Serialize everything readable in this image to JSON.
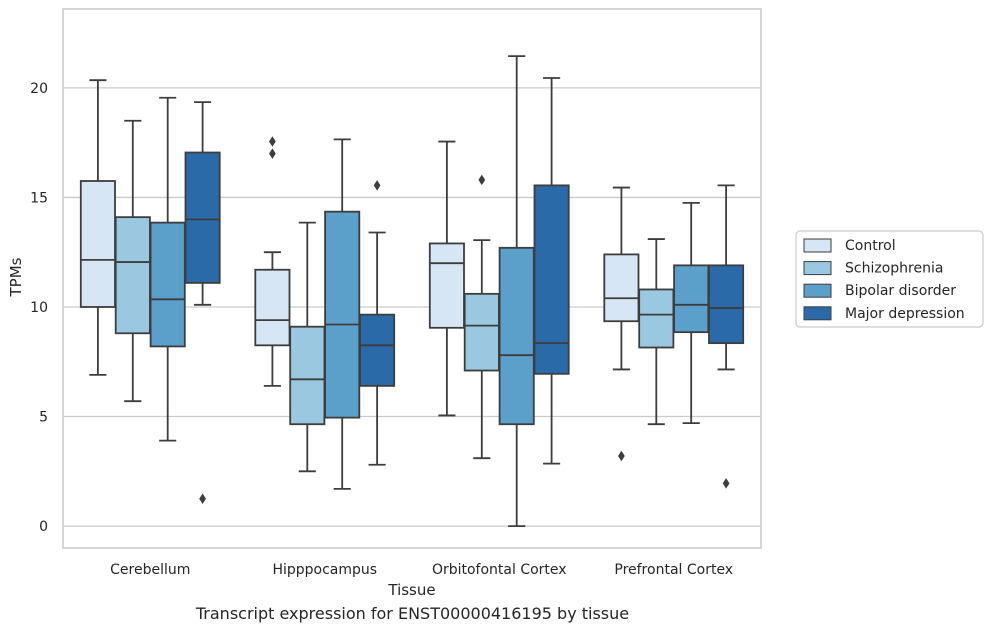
{
  "caption": "Transcript expression for ENST00000416195 by tissue",
  "chart_data": {
    "type": "box",
    "xlabel": "Tissue",
    "ylabel": "TPMs",
    "ylim": [
      -1,
      23.6
    ],
    "yticks": [
      0,
      5,
      10,
      15,
      20
    ],
    "grid": "horizontal",
    "legend_position": "right",
    "categories": [
      "Cerebellum",
      "Hipppocampus",
      "Orbitofontal Cortex",
      "Prefrontal Cortex"
    ],
    "series": [
      {
        "name": "Control",
        "color": "#d6e6f4",
        "boxes": [
          {
            "whislo": 6.9,
            "q1": 10.0,
            "med": 12.15,
            "q3": 15.75,
            "whishi": 20.35,
            "fliers": []
          },
          {
            "whislo": 6.4,
            "q1": 8.25,
            "med": 9.4,
            "q3": 11.7,
            "whishi": 12.5,
            "fliers": [
              17.0,
              17.55
            ]
          },
          {
            "whislo": 5.05,
            "q1": 9.05,
            "med": 12.0,
            "q3": 12.9,
            "whishi": 17.55,
            "fliers": []
          },
          {
            "whislo": 7.15,
            "q1": 9.35,
            "med": 10.4,
            "q3": 12.4,
            "whishi": 15.45,
            "fliers": [
              3.2
            ]
          }
        ]
      },
      {
        "name": "Schizophrenia",
        "color": "#9ac8e0",
        "boxes": [
          {
            "whislo": 5.7,
            "q1": 8.8,
            "med": 12.05,
            "q3": 14.1,
            "whishi": 18.5,
            "fliers": []
          },
          {
            "whislo": 2.5,
            "q1": 4.65,
            "med": 6.7,
            "q3": 9.1,
            "whishi": 13.85,
            "fliers": []
          },
          {
            "whislo": 3.1,
            "q1": 7.1,
            "med": 9.15,
            "q3": 10.6,
            "whishi": 13.05,
            "fliers": [
              15.8
            ]
          },
          {
            "whislo": 4.65,
            "q1": 8.15,
            "med": 9.65,
            "q3": 10.8,
            "whishi": 13.1,
            "fliers": []
          }
        ]
      },
      {
        "name": "Bipolar disorder",
        "color": "#5b9fcb",
        "boxes": [
          {
            "whislo": 3.9,
            "q1": 8.2,
            "med": 10.35,
            "q3": 13.85,
            "whishi": 19.55,
            "fliers": []
          },
          {
            "whislo": 1.7,
            "q1": 4.95,
            "med": 9.2,
            "q3": 14.35,
            "whishi": 17.65,
            "fliers": []
          },
          {
            "whislo": 0.0,
            "q1": 4.65,
            "med": 7.8,
            "q3": 12.7,
            "whishi": 21.45,
            "fliers": []
          },
          {
            "whislo": 4.7,
            "q1": 8.85,
            "med": 10.1,
            "q3": 11.9,
            "whishi": 14.75,
            "fliers": []
          }
        ]
      },
      {
        "name": "Major depression",
        "color": "#2b6aa8",
        "boxes": [
          {
            "whislo": 10.1,
            "q1": 11.1,
            "med": 14.0,
            "q3": 17.05,
            "whishi": 19.35,
            "fliers": [
              1.25
            ]
          },
          {
            "whislo": 2.8,
            "q1": 6.4,
            "med": 8.25,
            "q3": 9.65,
            "whishi": 13.4,
            "fliers": [
              15.55
            ]
          },
          {
            "whislo": 2.85,
            "q1": 6.95,
            "med": 8.35,
            "q3": 15.55,
            "whishi": 20.45,
            "fliers": []
          },
          {
            "whislo": 7.15,
            "q1": 8.35,
            "med": 9.95,
            "q3": 11.9,
            "whishi": 15.55,
            "fliers": [
              1.95
            ]
          }
        ]
      }
    ]
  }
}
